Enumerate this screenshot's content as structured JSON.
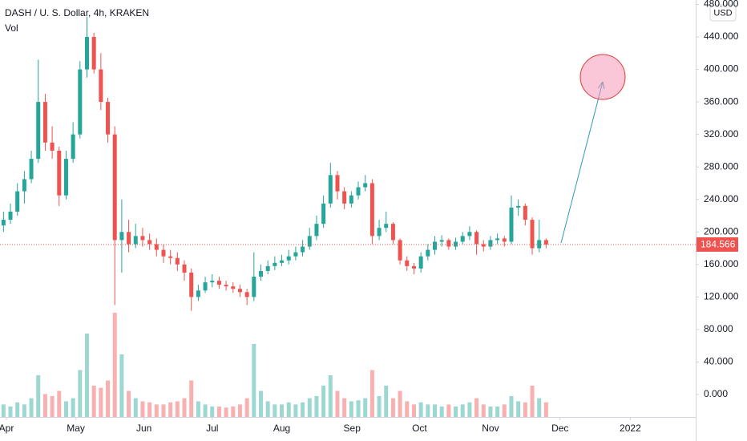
{
  "chart_data": {
    "type": "candlestick",
    "title": "DASH / U. S. Dollar, 4h, KRAKEN",
    "volume_label": "Vol",
    "currency": "USD",
    "categories": [
      null,
      null,
      null,
      null,
      null,
      null,
      null,
      null,
      null,
      null,
      null,
      null,
      null,
      null,
      null,
      null,
      null,
      null,
      null,
      null,
      null,
      null,
      null,
      null,
      null,
      null,
      null,
      null,
      null,
      null,
      null,
      null,
      null,
      null,
      null,
      null,
      null,
      null,
      null,
      null,
      null,
      null,
      null,
      null,
      null,
      null,
      null,
      null,
      null,
      null,
      null,
      null,
      null,
      null,
      null,
      null,
      null,
      null,
      null,
      null,
      null,
      null,
      null,
      null,
      null,
      null,
      null,
      null,
      null,
      null,
      null,
      null,
      null,
      null,
      null,
      null,
      null,
      null,
      null
    ],
    "candles": {
      "up_color": "#26a69a",
      "down_color": "#ef5350",
      "open": [
        208,
        215,
        225,
        250,
        265,
        290,
        360,
        310,
        300,
        245,
        290,
        320,
        400,
        440,
        400,
        360,
        320,
        190,
        200,
        185,
        195,
        190,
        185,
        178,
        170,
        168,
        160,
        150,
        120,
        128,
        138,
        140,
        135,
        133,
        130,
        126,
        120,
        145,
        152,
        158,
        162,
        165,
        170,
        175,
        182,
        195,
        210,
        235,
        270,
        250,
        235,
        245,
        255,
        260,
        195,
        205,
        210,
        190,
        165,
        158,
        155,
        170,
        178,
        188,
        190,
        182,
        188,
        195,
        200,
        185,
        182,
        190,
        192,
        188,
        230,
        232,
        215,
        180,
        190
      ],
      "high": [
        225,
        235,
        260,
        275,
        300,
        412,
        370,
        330,
        305,
        300,
        335,
        410,
        465,
        445,
        420,
        365,
        330,
        240,
        215,
        210,
        205,
        198,
        192,
        185,
        178,
        175,
        165,
        155,
        135,
        145,
        148,
        145,
        140,
        138,
        135,
        130,
        175,
        160,
        165,
        170,
        172,
        178,
        182,
        190,
        205,
        220,
        245,
        285,
        275,
        255,
        250,
        262,
        270,
        265,
        215,
        225,
        212,
        192,
        170,
        162,
        175,
        185,
        195,
        196,
        192,
        193,
        200,
        207,
        202,
        190,
        195,
        198,
        195,
        245,
        240,
        235,
        218,
        215,
        192
      ],
      "low": [
        200,
        210,
        220,
        235,
        260,
        285,
        300,
        290,
        232,
        240,
        285,
        315,
        390,
        395,
        350,
        310,
        110,
        150,
        175,
        180,
        182,
        178,
        170,
        162,
        160,
        152,
        140,
        103,
        115,
        125,
        132,
        130,
        128,
        125,
        120,
        110,
        115,
        140,
        148,
        153,
        158,
        160,
        165,
        170,
        178,
        190,
        205,
        230,
        240,
        228,
        230,
        240,
        250,
        185,
        190,
        200,
        185,
        160,
        152,
        148,
        150,
        165,
        172,
        182,
        178,
        178,
        185,
        190,
        172,
        176,
        178,
        185,
        182,
        185,
        220,
        208,
        172,
        175,
        180
      ],
      "close": [
        215,
        225,
        250,
        265,
        290,
        360,
        310,
        300,
        245,
        290,
        320,
        400,
        440,
        400,
        360,
        320,
        190,
        200,
        185,
        195,
        190,
        185,
        178,
        170,
        168,
        160,
        150,
        120,
        128,
        138,
        140,
        135,
        133,
        130,
        126,
        120,
        145,
        152,
        158,
        162,
        165,
        170,
        175,
        182,
        195,
        210,
        235,
        270,
        250,
        235,
        245,
        255,
        260,
        195,
        205,
        210,
        190,
        165,
        158,
        155,
        170,
        178,
        188,
        190,
        182,
        188,
        195,
        200,
        185,
        182,
        190,
        192,
        188,
        230,
        232,
        215,
        180,
        190,
        184.566
      ]
    },
    "volume": {
      "axis": "y2",
      "values": [
        12,
        10,
        14,
        12,
        18,
        40,
        22,
        20,
        25,
        15,
        18,
        45,
        80,
        30,
        28,
        35,
        100,
        60,
        25,
        18,
        15,
        14,
        12,
        12,
        14,
        15,
        18,
        35,
        15,
        12,
        10,
        10,
        9,
        10,
        12,
        18,
        70,
        25,
        15,
        12,
        12,
        14,
        12,
        14,
        18,
        20,
        30,
        40,
        25,
        18,
        15,
        16,
        18,
        45,
        20,
        30,
        18,
        25,
        15,
        12,
        14,
        12,
        12,
        10,
        12,
        10,
        12,
        14,
        18,
        12,
        10,
        10,
        12,
        20,
        15,
        14,
        30,
        18,
        14
      ]
    },
    "xlim": [
      0,
      100
    ],
    "xticks": [
      {
        "value": 0.92,
        "label": "Apr"
      },
      {
        "value": 10.9,
        "label": "May"
      },
      {
        "value": 20.7,
        "label": "Jun"
      },
      {
        "value": 30.5,
        "label": "Jul"
      },
      {
        "value": 40.5,
        "label": "Aug"
      },
      {
        "value": 50.6,
        "label": "Sep"
      },
      {
        "value": 60.3,
        "label": "Oct"
      },
      {
        "value": 70.5,
        "label": "Nov"
      },
      {
        "value": 80.5,
        "label": "Dec"
      },
      {
        "value": 90.6,
        "label": "2022"
      }
    ],
    "ylim": [
      -27.6,
      485.4
    ],
    "yticks": [
      {
        "value": 0,
        "label": "0.000"
      },
      {
        "value": 40,
        "label": "40.000"
      },
      {
        "value": 80,
        "label": "80.000"
      },
      {
        "value": 120,
        "label": "120.000"
      },
      {
        "value": 160,
        "label": "160.000"
      },
      {
        "value": 200,
        "label": "200.000"
      },
      {
        "value": 240,
        "label": "240.000"
      },
      {
        "value": 280,
        "label": "280.000"
      },
      {
        "value": 320,
        "label": "320.000"
      },
      {
        "value": 360,
        "label": "360.000"
      },
      {
        "value": 400,
        "label": "400.000"
      },
      {
        "value": 440,
        "label": "440.000"
      },
      {
        "value": 480,
        "label": "480.000"
      }
    ],
    "y2lim": [
      0,
      400
    ]
  }
}
